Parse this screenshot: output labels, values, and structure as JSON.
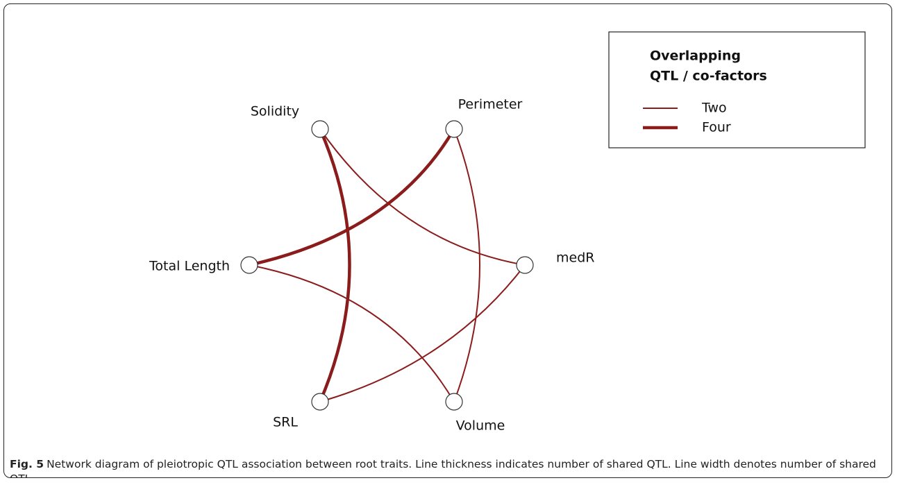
{
  "diagram": {
    "nodes": [
      {
        "label": "Solidity"
      },
      {
        "label": "Perimeter"
      },
      {
        "label": "Total Length"
      },
      {
        "label": "medR"
      },
      {
        "label": "SRL"
      },
      {
        "label": "Volume"
      }
    ],
    "edges": [
      {
        "from": "Solidity",
        "to": "SRL",
        "legend": "Four"
      },
      {
        "from": "Perimeter",
        "to": "Total Length",
        "legend": "Four"
      },
      {
        "from": "Solidity",
        "to": "medR",
        "legend": "Two"
      },
      {
        "from": "Perimeter",
        "to": "Volume",
        "legend": "Two"
      },
      {
        "from": "Total Length",
        "to": "Volume",
        "legend": "Two"
      },
      {
        "from": "SRL",
        "to": "medR",
        "legend": "Two"
      }
    ],
    "legend": {
      "title": [
        "Overlapping",
        "QTL / co-factors"
      ],
      "items": [
        {
          "label": "Two"
        },
        {
          "label": "Four"
        }
      ]
    },
    "color": "#8b1c1c"
  },
  "caption": {
    "label": "Fig. 5",
    "text": "Network diagram of pleiotropic QTL association between root traits. Line thickness indicates number of shared QTL. Line width denotes number of shared QTL"
  }
}
